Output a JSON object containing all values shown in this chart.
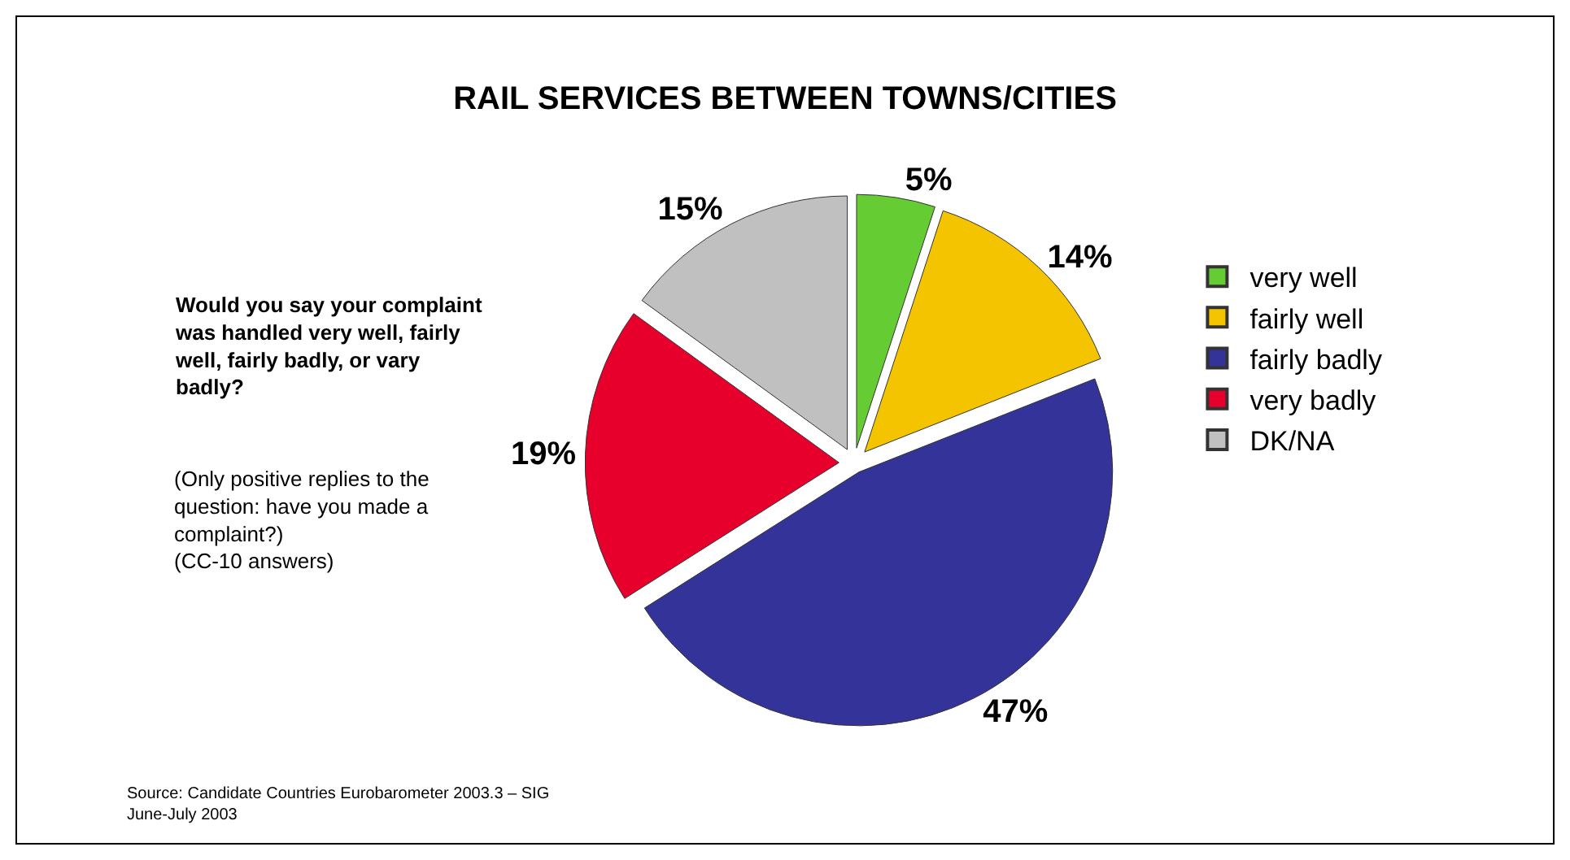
{
  "chart_data": {
    "type": "pie",
    "title": "RAIL SERVICES BETWEEN TOWNS/CITIES",
    "categories": [
      "very well",
      "fairly well",
      "fairly badly",
      "very badly",
      "DK/NA"
    ],
    "values": [
      5,
      14,
      47,
      19,
      15
    ],
    "colors": [
      "#66cc33",
      "#f5c400",
      "#333399",
      "#e8002d",
      "#c0c0c0"
    ],
    "value_labels": [
      "5%",
      "14%",
      "47%",
      "19%",
      "15%"
    ],
    "legend": "right",
    "annotations": [
      "Would you say your complaint was handled very well, fairly well, fairly badly, or vary badly?",
      "(Only positive replies to the question: have you made a complaint?)\n(CC-10 answers)",
      "Source: Candidate Countries Eurobarometer 2003.3 – SIG\nJune-July 2003"
    ]
  }
}
